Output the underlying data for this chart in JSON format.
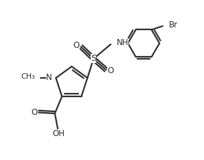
{
  "background_color": "#ffffff",
  "line_color": "#2d2d2d",
  "line_width": 1.6,
  "font_size": 8.5,
  "figsize": [
    2.97,
    2.34
  ],
  "dpi": 100,
  "xlim": [
    0,
    10
  ],
  "ylim": [
    0,
    7.9
  ]
}
